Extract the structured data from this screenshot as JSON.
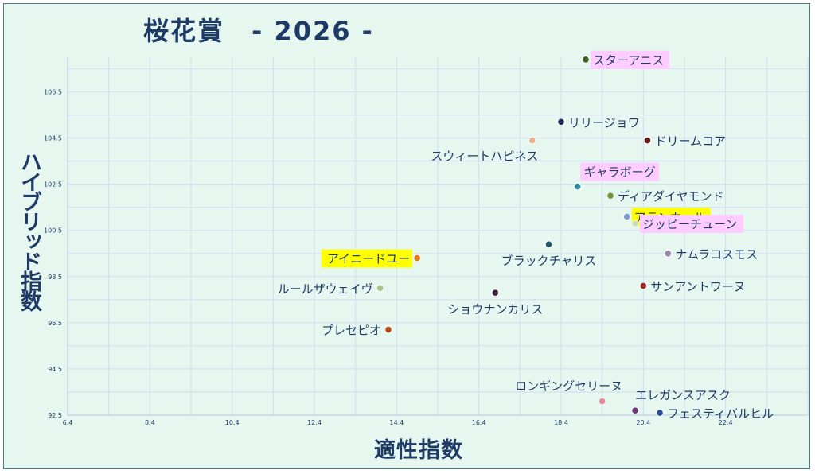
{
  "title": "桜花賞　- 2026 -",
  "chart_data": {
    "type": "scatter",
    "xlabel": "適性指数",
    "ylabel": "ハイブリッド指数",
    "xlim": [
      6.4,
      24.4
    ],
    "ylim": [
      92.5,
      108.0
    ],
    "x_ticks": [
      "6.4",
      "8.4",
      "10.4",
      "12.4",
      "14.4",
      "16.4",
      "18.4",
      "20.4",
      "22.4"
    ],
    "y_ticks": [
      "92.5",
      "94.5",
      "96.5",
      "98.5",
      "100.5",
      "102.5",
      "104.5",
      "106.5"
    ],
    "grid": true,
    "colors": {
      "background": "#e6f7ef",
      "grid": "#d3dcf2",
      "text": "#1e3a66",
      "highlight_yellow": "#ffff00",
      "highlight_pink": "#ffccff"
    },
    "points": [
      {
        "name": "スターアニス",
        "x": 19.0,
        "y": 107.9,
        "color": "#3d5f1e",
        "highlight": "pink",
        "label_pos": "right"
      },
      {
        "name": "リリージョワ",
        "x": 18.4,
        "y": 105.2,
        "color": "#1e2a5a",
        "highlight": "none",
        "label_pos": "right"
      },
      {
        "name": "ドリームコア",
        "x": 20.5,
        "y": 104.4,
        "color": "#6b1a1a",
        "highlight": "none",
        "label_pos": "right"
      },
      {
        "name": "スウィートハピネス",
        "x": 17.7,
        "y": 104.4,
        "color": "#f0b08a",
        "highlight": "none",
        "label_pos": "below-left"
      },
      {
        "name": "ギャラボーグ",
        "x": 18.8,
        "y": 102.4,
        "color": "#2d8a99",
        "highlight": "pink",
        "label_pos": "above"
      },
      {
        "name": "ディアダイヤモンド",
        "x": 19.6,
        "y": 102.0,
        "color": "#6a9a35",
        "highlight": "none",
        "label_pos": "right"
      },
      {
        "name": "アランカール",
        "x": 20.0,
        "y": 101.1,
        "color": "#7d9ec8",
        "highlight": "yellow",
        "label_pos": "right"
      },
      {
        "name": "ジッピーチューン",
        "x": 20.2,
        "y": 100.8,
        "color": "#c8e0b8",
        "highlight": "pink",
        "label_pos": "right"
      },
      {
        "name": "ブラックチャリス",
        "x": 18.1,
        "y": 99.9,
        "color": "#1e5a66",
        "highlight": "none",
        "label_pos": "below"
      },
      {
        "name": "ナムラコスモス",
        "x": 21.0,
        "y": 99.5,
        "color": "#9a85aa",
        "highlight": "none",
        "label_pos": "right"
      },
      {
        "name": "アイニードユー",
        "x": 14.9,
        "y": 99.3,
        "color": "#e87a1e",
        "highlight": "yellow",
        "label_pos": "left"
      },
      {
        "name": "サンアントワーヌ",
        "x": 20.4,
        "y": 98.1,
        "color": "#a32828",
        "highlight": "none",
        "label_pos": "right"
      },
      {
        "name": "ルールザウェイヴ",
        "x": 14.0,
        "y": 98.0,
        "color": "#a8c48a",
        "highlight": "none",
        "label_pos": "left"
      },
      {
        "name": "ショウナンカリス",
        "x": 16.8,
        "y": 97.8,
        "color": "#3d2040",
        "highlight": "none",
        "label_pos": "below"
      },
      {
        "name": "プレセピオ",
        "x": 14.2,
        "y": 96.2,
        "color": "#b84a1e",
        "highlight": "none",
        "label_pos": "left"
      },
      {
        "name": "ロンギングセリーヌ",
        "x": 19.4,
        "y": 93.1,
        "color": "#e88a96",
        "highlight": "none",
        "label_pos": "above-left"
      },
      {
        "name": "エレガンスアスク",
        "x": 20.2,
        "y": 92.7,
        "color": "#6a3a78",
        "highlight": "none",
        "label_pos": "above-right"
      },
      {
        "name": "フェスティバルヒル",
        "x": 20.8,
        "y": 92.6,
        "color": "#2a4a9a",
        "highlight": "none",
        "label_pos": "right"
      }
    ]
  }
}
